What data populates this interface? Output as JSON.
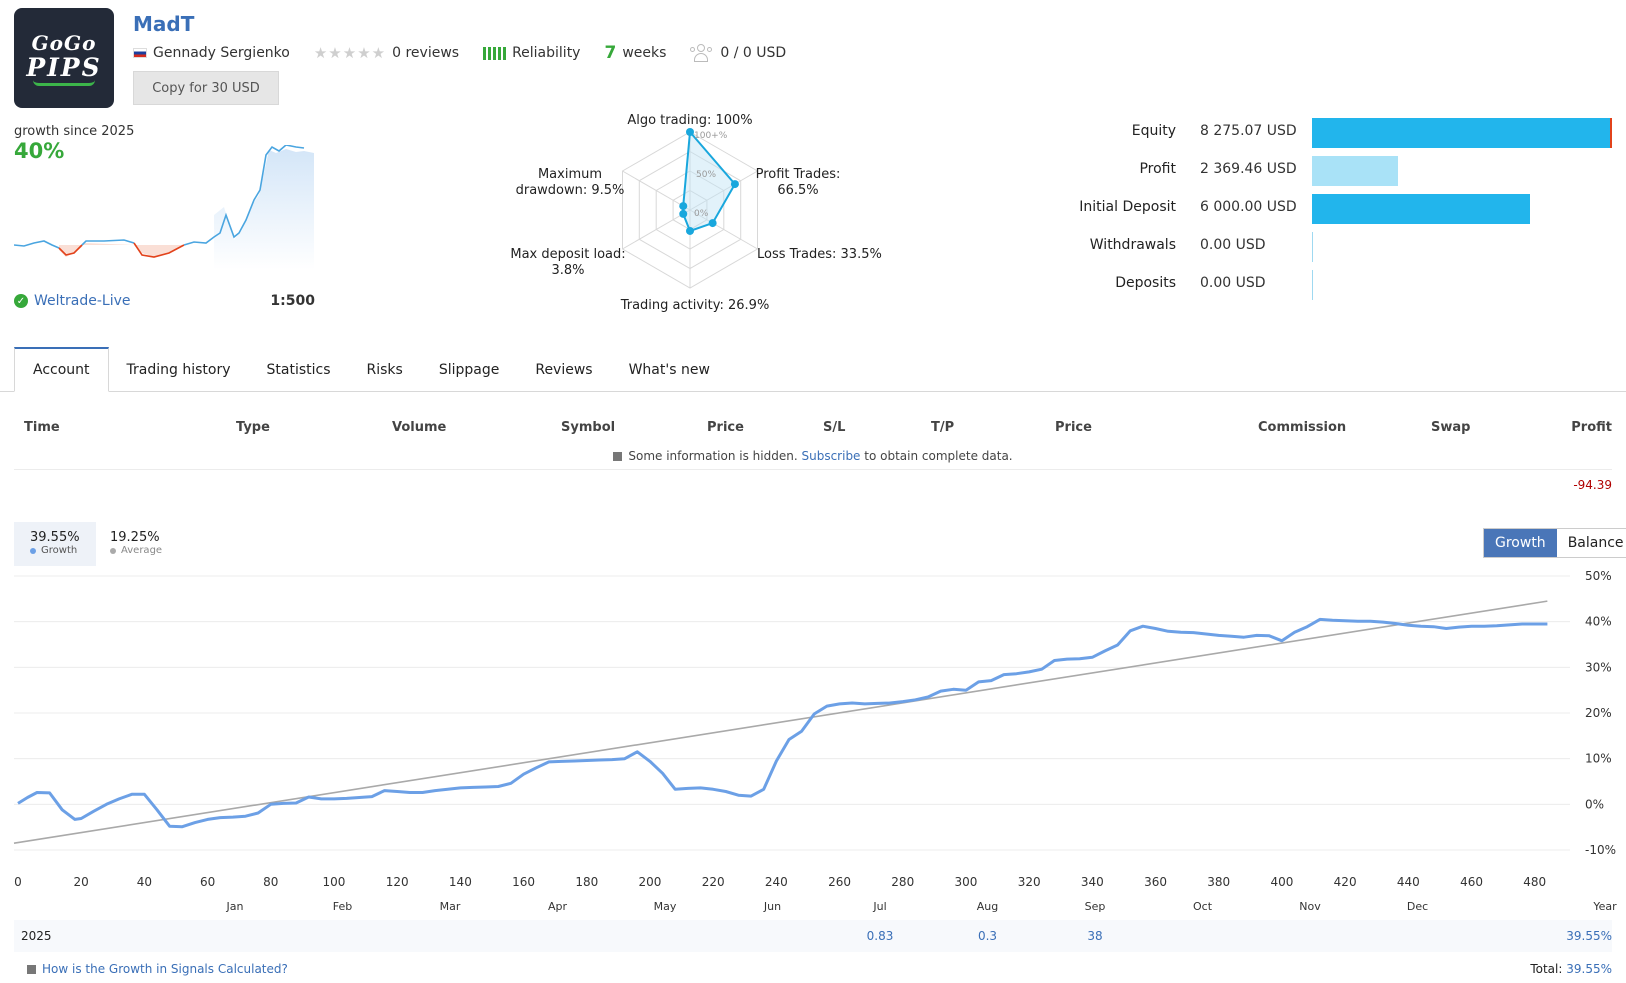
{
  "header": {
    "logo": {
      "line1": "GoGo",
      "line2": "PIPS"
    },
    "signal_name": "MadT",
    "author": "Gennady Sergienko",
    "reviews": "0 reviews",
    "reliability_label": "Reliability",
    "weeks_num": "7",
    "weeks_label": "weeks",
    "subscribers": "0 / 0 USD",
    "copy_button": "Copy for 30 USD"
  },
  "summary": {
    "growth_since": "growth since 2025",
    "growth_value": "40%",
    "broker": "Weltrade-Live",
    "leverage": "1:500"
  },
  "radar": {
    "algo": "Algo trading: 100%",
    "profit_trades_1": "Profit Trades:",
    "profit_trades_2": "66.5%",
    "loss_trades": "Loss Trades: 33.5%",
    "activity": "Trading activity: 26.9%",
    "deposit_load_1": "Max deposit load:",
    "deposit_load_2": "3.8%",
    "drawdown_1": "Maximum",
    "drawdown_2": "drawdown: 9.5%",
    "scale_100": "100+%",
    "scale_50": "50%",
    "scale_0": "0%",
    "values": [
      100,
      66.5,
      33.5,
      26.9,
      3.8,
      9.5
    ]
  },
  "balances": [
    {
      "label": "Equity",
      "value": "8 275.07 USD",
      "amount": 8275.07
    },
    {
      "label": "Profit",
      "value": "2 369.46 USD",
      "amount": 2369.46
    },
    {
      "label": "Initial Deposit",
      "value": "6 000.00 USD",
      "amount": 6000.0
    },
    {
      "label": "Withdrawals",
      "value": "0.00 USD",
      "amount": 0
    },
    {
      "label": "Deposits",
      "value": "0.00 USD",
      "amount": 0
    }
  ],
  "tabs": [
    "Account",
    "Trading history",
    "Statistics",
    "Risks",
    "Slippage",
    "Reviews",
    "What's new"
  ],
  "table": {
    "headers": [
      "Time",
      "Type",
      "Volume",
      "Symbol",
      "Price",
      "S/L",
      "T/P",
      "Price",
      "Commission",
      "Swap",
      "Profit"
    ],
    "note_prefix": "Some information is hidden.",
    "note_link": "Subscribe",
    "note_suffix": "to obtain complete data.",
    "total_profit": "-94.39"
  },
  "growth_stats": {
    "growth_value": "39.55%",
    "growth_label": "Growth",
    "average_value": "19.25%",
    "average_label": "Average",
    "toggle_growth": "Growth",
    "toggle_balance": "Balance"
  },
  "colors": {
    "accent": "#3a6fb7",
    "growth_line": "#6ca0e6",
    "positive": "#36a83a",
    "negative": "#e2421b",
    "equity_bar": "#22b5ec",
    "profit_bar": "#a9e2f7"
  },
  "chart_data": {
    "type": "line",
    "x_ticks": [
      "0",
      "20",
      "40",
      "60",
      "80",
      "100",
      "120",
      "140",
      "160",
      "180",
      "200",
      "220",
      "240",
      "260",
      "280",
      "300",
      "320",
      "340",
      "360",
      "380",
      "400",
      "420",
      "440",
      "460",
      "480"
    ],
    "months": [
      "Jan",
      "Feb",
      "Mar",
      "Apr",
      "May",
      "Jun",
      "Jul",
      "Aug",
      "Sep",
      "Oct",
      "Nov",
      "Dec",
      "Year"
    ],
    "y_ticks": [
      "50%",
      "40%",
      "30%",
      "20%",
      "10%",
      "0%",
      "-10%"
    ],
    "ylim": [
      -10,
      50
    ],
    "xlim": [
      0,
      488
    ],
    "series": [
      {
        "name": "Growth",
        "x": [
          0,
          3,
          6,
          10,
          14,
          18,
          20,
          24,
          28,
          32,
          36,
          40,
          44,
          48,
          52,
          56,
          60,
          64,
          68,
          72,
          76,
          80,
          84,
          88,
          92,
          96,
          100,
          104,
          108,
          112,
          116,
          120,
          124,
          128,
          132,
          136,
          140,
          144,
          148,
          152,
          156,
          160,
          164,
          168,
          172,
          176,
          180,
          184,
          188,
          192,
          196,
          200,
          204,
          208,
          212,
          216,
          220,
          224,
          228,
          232,
          236,
          240,
          244,
          248,
          252,
          256,
          260,
          264,
          268,
          272,
          276,
          280,
          284,
          288,
          292,
          296,
          300,
          304,
          308,
          312,
          316,
          320,
          324,
          328,
          332,
          336,
          340,
          344,
          348,
          352,
          356,
          360,
          364,
          368,
          372,
          376,
          380,
          384,
          388,
          392,
          396,
          400,
          404,
          408,
          412,
          416,
          420,
          424,
          428,
          432,
          436,
          440,
          444,
          448,
          452,
          456,
          460,
          464,
          468,
          472,
          476,
          480,
          484
        ],
        "values": [
          0.2,
          1.5,
          2.6,
          2.5,
          -1.2,
          -3.3,
          -3.1,
          -1.5,
          0.0,
          1.2,
          2.2,
          2.2,
          -1.2,
          -4.8,
          -4.9,
          -4.0,
          -3.3,
          -2.9,
          -2.8,
          -2.6,
          -1.9,
          0.0,
          0.2,
          0.3,
          1.6,
          1.2,
          1.2,
          1.3,
          1.5,
          1.7,
          3.0,
          2.8,
          2.6,
          2.6,
          3.0,
          3.3,
          3.6,
          3.7,
          3.8,
          3.9,
          4.6,
          6.6,
          8.0,
          9.3,
          9.4,
          9.5,
          9.6,
          9.7,
          9.8,
          10.0,
          11.5,
          9.4,
          6.8,
          3.3,
          3.5,
          3.6,
          3.3,
          2.8,
          2.0,
          1.8,
          3.3,
          9.5,
          14.2,
          16.0,
          19.8,
          21.5,
          22.0,
          22.2,
          22.0,
          22.1,
          22.2,
          22.5,
          22.9,
          23.5,
          24.8,
          25.2,
          25.0,
          26.8,
          27.1,
          28.4,
          28.6,
          29.0,
          29.6,
          31.5,
          31.8,
          31.9,
          32.2,
          33.6,
          34.9,
          38.0,
          39.0,
          38.5,
          37.9,
          37.7,
          37.6,
          37.3,
          37.0,
          36.8,
          36.6,
          37.0,
          36.9,
          35.8,
          37.7,
          38.9,
          40.5,
          40.3,
          40.2,
          40.1,
          40.1,
          39.9,
          39.6,
          39.2,
          39.0,
          38.9,
          38.5,
          38.8,
          39.0,
          39.0,
          39.1,
          39.3,
          39.5,
          39.5,
          39.5
        ]
      },
      {
        "name": "Average",
        "x": [
          0,
          484
        ],
        "values": [
          -8.5,
          44.5
        ]
      }
    ],
    "year_row": {
      "year": "2025",
      "entries": [
        {
          "month": "Jul",
          "value": "0.83"
        },
        {
          "month": "Aug",
          "value": "0.3"
        },
        {
          "month": "Sep",
          "value": "38"
        }
      ],
      "year_total": "39.55%"
    }
  },
  "footer": {
    "question": "How is the Growth in Signals Calculated?",
    "total_label": "Total:",
    "total_value": "39.55%"
  }
}
